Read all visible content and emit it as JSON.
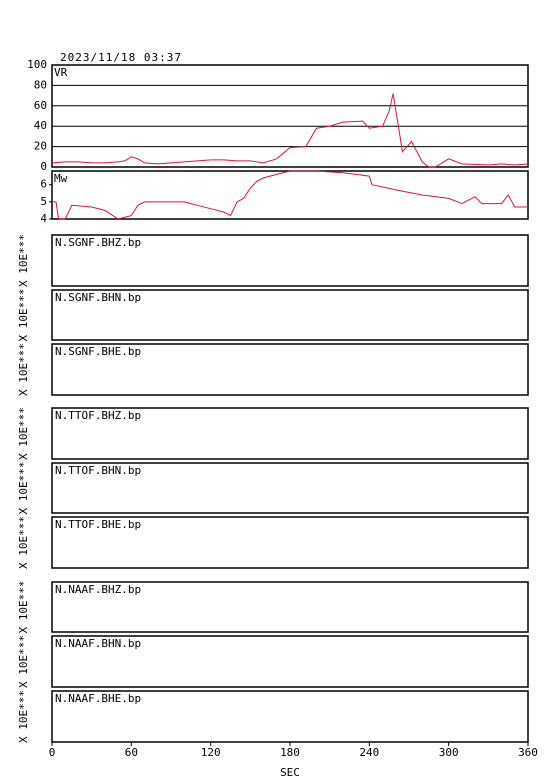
{
  "chart_data": [
    {
      "type": "line",
      "title": "2023/11/18 03:37",
      "ylabel": "VR",
      "color": "#dc143c",
      "grid": true,
      "xlim": [
        0,
        360
      ],
      "ylim": [
        0,
        100
      ],
      "yticks": [
        0,
        20,
        40,
        60,
        80,
        100
      ],
      "x": [
        0,
        10,
        20,
        30,
        40,
        50,
        55,
        60,
        65,
        70,
        80,
        90,
        100,
        110,
        120,
        130,
        140,
        150,
        160,
        170,
        180,
        192,
        200,
        210,
        220,
        235,
        240,
        250,
        255,
        258,
        262,
        265,
        272,
        280,
        285,
        290,
        300,
        310,
        330,
        340,
        350,
        360
      ],
      "values": [
        4,
        5,
        5,
        4,
        4,
        5,
        6,
        10,
        8,
        4,
        3,
        4,
        5,
        6,
        7,
        7,
        6,
        6,
        4,
        8,
        19,
        20,
        38,
        40,
        44,
        45,
        38,
        40,
        55,
        72,
        40,
        15,
        25,
        5,
        0,
        0,
        8,
        3,
        2,
        3,
        2,
        3
      ]
    },
    {
      "type": "line",
      "ylabel": "Mw",
      "color": "#dc143c",
      "grid": false,
      "xlim": [
        0,
        360
      ],
      "ylim": [
        4,
        6.8
      ],
      "yticks": [
        4,
        5,
        6
      ],
      "x": [
        0,
        3,
        5,
        10,
        15,
        30,
        40,
        50,
        60,
        65,
        70,
        100,
        110,
        120,
        130,
        135,
        140,
        145,
        150,
        155,
        160,
        170,
        180,
        200,
        220,
        240,
        242,
        260,
        280,
        300,
        310,
        320,
        325,
        340,
        345,
        350,
        360
      ],
      "values": [
        5,
        5,
        4,
        4,
        4.8,
        4.7,
        4.5,
        4.0,
        4.2,
        4.8,
        5,
        5,
        4.8,
        4.6,
        4.4,
        4.2,
        5,
        5.2,
        5.8,
        6.2,
        6.4,
        6.6,
        6.8,
        6.8,
        6.7,
        6.5,
        6.0,
        5.7,
        5.4,
        5.2,
        4.9,
        5.3,
        4.9,
        4.9,
        5.4,
        4.7,
        4.7
      ]
    },
    {
      "type": "trace",
      "label": "N.SGNF.BHZ.bp",
      "ylabel": "X 10E***"
    },
    {
      "type": "trace",
      "label": "N.SGNF.BHN.bp",
      "ylabel": "X 10E***"
    },
    {
      "type": "trace",
      "label": "N.SGNF.BHE.bp",
      "ylabel": "X 10E***"
    },
    {
      "type": "trace",
      "label": "N.TTOF.BHZ.bp",
      "ylabel": "X 10E***"
    },
    {
      "type": "trace",
      "label": "N.TTOF.BHN.bp",
      "ylabel": "X 10E***"
    },
    {
      "type": "trace",
      "label": "N.TTOF.BHE.bp",
      "ylabel": "X 10E***"
    },
    {
      "type": "trace",
      "label": "N.NAAF.BHZ.bp",
      "ylabel": "X 10E***"
    },
    {
      "type": "trace",
      "label": "N.NAAF.BHN.bp",
      "ylabel": "X 10E***"
    },
    {
      "type": "trace",
      "label": "N.NAAF.BHE.bp",
      "ylabel": "X 10E***",
      "xlim": [
        0,
        360
      ],
      "xticks": [
        0,
        60,
        120,
        180,
        240,
        300,
        360
      ],
      "xlabel": "SEC"
    }
  ]
}
